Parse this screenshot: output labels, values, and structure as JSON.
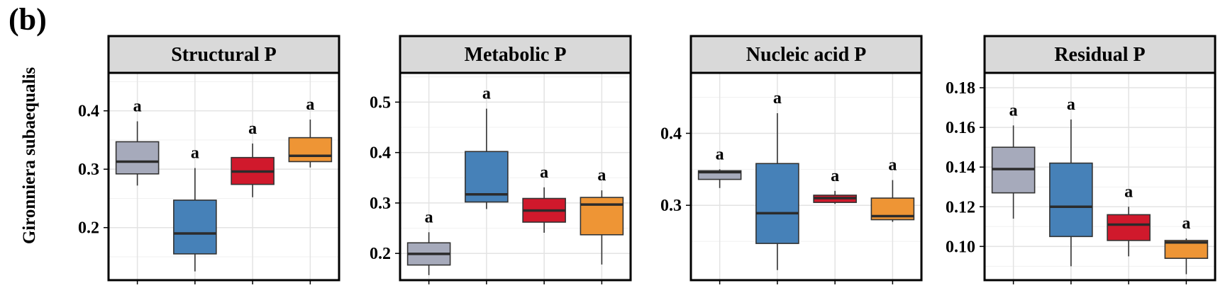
{
  "figure": {
    "panel_letter": "(b)",
    "y_label": "Gironniera subaequalis"
  },
  "colors": [
    "#a6aabb",
    "#4681b8",
    "#d0192c",
    "#ee9535"
  ],
  "chart_data": [
    {
      "type": "box",
      "title": "Structural P",
      "ylim": [
        0.11,
        0.465
      ],
      "yticks": [
        0.2,
        0.3,
        0.4
      ],
      "tick_labels": [
        "0.2",
        "0.3",
        "0.4"
      ],
      "grid": true,
      "boxes": [
        {
          "min": 0.272,
          "q1": 0.292,
          "median": 0.313,
          "q3": 0.347,
          "max": 0.382,
          "letter": "a"
        },
        {
          "min": 0.125,
          "q1": 0.155,
          "median": 0.19,
          "q3": 0.247,
          "max": 0.302,
          "letter": "a"
        },
        {
          "min": 0.252,
          "q1": 0.274,
          "median": 0.296,
          "q3": 0.32,
          "max": 0.344,
          "letter": "a"
        },
        {
          "min": 0.303,
          "q1": 0.313,
          "median": 0.323,
          "q3": 0.354,
          "max": 0.385,
          "letter": "a"
        }
      ]
    },
    {
      "type": "box",
      "title": "Metabolic P",
      "ylim": [
        0.147,
        0.558
      ],
      "yticks": [
        0.2,
        0.3,
        0.4,
        0.5
      ],
      "tick_labels": [
        "0.2",
        "0.3",
        "0.4",
        "0.5"
      ],
      "grid": true,
      "boxes": [
        {
          "min": 0.157,
          "q1": 0.177,
          "median": 0.199,
          "q3": 0.221,
          "max": 0.242,
          "letter": "a"
        },
        {
          "min": 0.288,
          "q1": 0.302,
          "median": 0.317,
          "q3": 0.402,
          "max": 0.487,
          "letter": "a"
        },
        {
          "min": 0.241,
          "q1": 0.262,
          "median": 0.285,
          "q3": 0.309,
          "max": 0.331,
          "letter": "a"
        },
        {
          "min": 0.178,
          "q1": 0.237,
          "median": 0.297,
          "q3": 0.311,
          "max": 0.325,
          "letter": "a"
        }
      ]
    },
    {
      "type": "box",
      "title": "Nucleic acid P",
      "ylim": [
        0.196,
        0.484
      ],
      "yticks": [
        0.3,
        0.4
      ],
      "tick_labels": [
        "0.3",
        "0.4"
      ],
      "grid": true,
      "boxes": [
        {
          "min": 0.324,
          "q1": 0.336,
          "median": 0.346,
          "q3": 0.348,
          "max": 0.35,
          "letter": "a"
        },
        {
          "min": 0.21,
          "q1": 0.247,
          "median": 0.289,
          "q3": 0.358,
          "max": 0.428,
          "letter": "a"
        },
        {
          "min": 0.302,
          "q1": 0.304,
          "median": 0.31,
          "q3": 0.314,
          "max": 0.32,
          "letter": "a"
        },
        {
          "min": 0.277,
          "q1": 0.28,
          "median": 0.285,
          "q3": 0.31,
          "max": 0.335,
          "letter": "a"
        }
      ]
    },
    {
      "type": "box",
      "title": "Residual P",
      "ylim": [
        0.083,
        0.1875
      ],
      "yticks": [
        0.1,
        0.12,
        0.14,
        0.16,
        0.18
      ],
      "tick_labels": [
        "0.10",
        "0.12",
        "0.14",
        "0.16",
        "0.18"
      ],
      "grid": true,
      "boxes": [
        {
          "min": 0.114,
          "q1": 0.127,
          "median": 0.139,
          "q3": 0.15,
          "max": 0.161,
          "letter": "a"
        },
        {
          "min": 0.09,
          "q1": 0.105,
          "median": 0.12,
          "q3": 0.142,
          "max": 0.164,
          "letter": "a"
        },
        {
          "min": 0.095,
          "q1": 0.103,
          "median": 0.111,
          "q3": 0.116,
          "max": 0.12,
          "letter": "a"
        },
        {
          "min": 0.086,
          "q1": 0.094,
          "median": 0.102,
          "q3": 0.103,
          "max": 0.104,
          "letter": "a"
        }
      ]
    }
  ]
}
